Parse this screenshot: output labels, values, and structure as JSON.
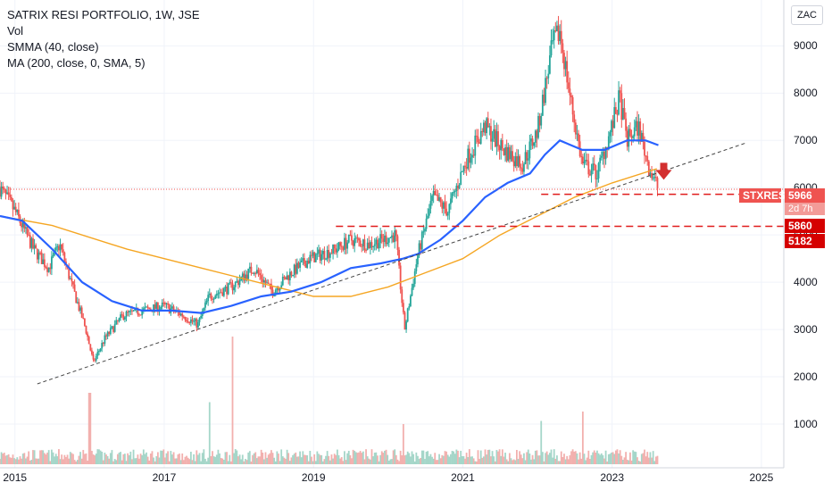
{
  "legend": {
    "title": "SATRIX RESI PORTFOLIO, 1W, JSE",
    "vol": "Vol",
    "smma": "SMMA (40, close)",
    "ma": "MA (200, close, 0, SMA, 5)"
  },
  "currency_button": "ZAC",
  "colors": {
    "up": "#26a69a",
    "down": "#ef5350",
    "smma": "#2962ff",
    "ma": "#f5a623",
    "level": "#e01b1b",
    "trend": "#444444"
  },
  "price_tags": {
    "symbol": "STXRES",
    "last_price": "5966",
    "countdown": "2d 7h",
    "level_1": "5860",
    "level_2": "5182"
  },
  "chart_data": {
    "type": "candlestick",
    "title": "SATRIX RESI PORTFOLIO, 1W, JSE",
    "xlim": [
      2014.8,
      2025.3
    ],
    "ylim": [
      1000,
      9800
    ],
    "y_ticks": [
      1000,
      2000,
      3000,
      4000,
      5000,
      6000,
      7000,
      8000,
      9000
    ],
    "x_ticks": [
      2015,
      2017,
      2019,
      2021,
      2023,
      2025
    ],
    "close_path": [
      {
        "x": 2014.8,
        "y": 5990
      },
      {
        "x": 2015.0,
        "y": 5500
      },
      {
        "x": 2015.25,
        "y": 4700
      },
      {
        "x": 2015.45,
        "y": 4300
      },
      {
        "x": 2015.6,
        "y": 4800
      },
      {
        "x": 2015.75,
        "y": 4000
      },
      {
        "x": 2015.95,
        "y": 3000
      },
      {
        "x": 2016.05,
        "y": 2300
      },
      {
        "x": 2016.2,
        "y": 2800
      },
      {
        "x": 2016.45,
        "y": 3300
      },
      {
        "x": 2016.7,
        "y": 3400
      },
      {
        "x": 2017.0,
        "y": 3500
      },
      {
        "x": 2017.25,
        "y": 3300
      },
      {
        "x": 2017.45,
        "y": 3100
      },
      {
        "x": 2017.6,
        "y": 3700
      },
      {
        "x": 2017.9,
        "y": 3900
      },
      {
        "x": 2018.2,
        "y": 4300
      },
      {
        "x": 2018.45,
        "y": 3800
      },
      {
        "x": 2018.7,
        "y": 4200
      },
      {
        "x": 2018.95,
        "y": 4500
      },
      {
        "x": 2019.3,
        "y": 4700
      },
      {
        "x": 2019.5,
        "y": 4900
      },
      {
        "x": 2019.75,
        "y": 4800
      },
      {
        "x": 2020.1,
        "y": 5000
      },
      {
        "x": 2020.22,
        "y": 3000
      },
      {
        "x": 2020.4,
        "y": 4600
      },
      {
        "x": 2020.6,
        "y": 5800
      },
      {
        "x": 2020.8,
        "y": 5500
      },
      {
        "x": 2021.05,
        "y": 6600
      },
      {
        "x": 2021.3,
        "y": 7300
      },
      {
        "x": 2021.55,
        "y": 6800
      },
      {
        "x": 2021.8,
        "y": 6500
      },
      {
        "x": 2022.0,
        "y": 7200
      },
      {
        "x": 2022.2,
        "y": 9000
      },
      {
        "x": 2022.3,
        "y": 9300
      },
      {
        "x": 2022.45,
        "y": 7800
      },
      {
        "x": 2022.6,
        "y": 6500
      },
      {
        "x": 2022.8,
        "y": 6300
      },
      {
        "x": 2023.0,
        "y": 7300
      },
      {
        "x": 2023.1,
        "y": 7900
      },
      {
        "x": 2023.2,
        "y": 7000
      },
      {
        "x": 2023.35,
        "y": 7300
      },
      {
        "x": 2023.5,
        "y": 6400
      },
      {
        "x": 2023.62,
        "y": 5970
      }
    ],
    "smma_40": [
      {
        "x": 2014.8,
        "y": 5400
      },
      {
        "x": 2015.1,
        "y": 5300
      },
      {
        "x": 2015.5,
        "y": 4700
      },
      {
        "x": 2015.9,
        "y": 4000
      },
      {
        "x": 2016.3,
        "y": 3600
      },
      {
        "x": 2016.7,
        "y": 3400
      },
      {
        "x": 2017.1,
        "y": 3400
      },
      {
        "x": 2017.5,
        "y": 3350
      },
      {
        "x": 2017.9,
        "y": 3500
      },
      {
        "x": 2018.3,
        "y": 3700
      },
      {
        "x": 2018.7,
        "y": 3800
      },
      {
        "x": 2019.1,
        "y": 4000
      },
      {
        "x": 2019.5,
        "y": 4300
      },
      {
        "x": 2019.9,
        "y": 4400
      },
      {
        "x": 2020.2,
        "y": 4500
      },
      {
        "x": 2020.4,
        "y": 4600
      },
      {
        "x": 2020.7,
        "y": 4900
      },
      {
        "x": 2021.0,
        "y": 5300
      },
      {
        "x": 2021.3,
        "y": 5800
      },
      {
        "x": 2021.6,
        "y": 6100
      },
      {
        "x": 2021.9,
        "y": 6300
      },
      {
        "x": 2022.1,
        "y": 6700
      },
      {
        "x": 2022.3,
        "y": 7000
      },
      {
        "x": 2022.6,
        "y": 6800
      },
      {
        "x": 2022.9,
        "y": 6800
      },
      {
        "x": 2023.2,
        "y": 7000
      },
      {
        "x": 2023.45,
        "y": 7000
      },
      {
        "x": 2023.62,
        "y": 6900
      }
    ],
    "ma_200": [
      {
        "x": 2014.8,
        "y": 5400
      },
      {
        "x": 2015.5,
        "y": 5200
      },
      {
        "x": 2016.5,
        "y": 4700
      },
      {
        "x": 2017.5,
        "y": 4300
      },
      {
        "x": 2018.5,
        "y": 3900
      },
      {
        "x": 2019.0,
        "y": 3700
      },
      {
        "x": 2019.5,
        "y": 3700
      },
      {
        "x": 2020.0,
        "y": 3900
      },
      {
        "x": 2020.5,
        "y": 4200
      },
      {
        "x": 2021.0,
        "y": 4500
      },
      {
        "x": 2021.5,
        "y": 5000
      },
      {
        "x": 2022.0,
        "y": 5400
      },
      {
        "x": 2022.5,
        "y": 5800
      },
      {
        "x": 2023.0,
        "y": 6100
      },
      {
        "x": 2023.6,
        "y": 6400
      }
    ],
    "trendline": [
      {
        "x": 2015.3,
        "y": 1850
      },
      {
        "x": 2024.8,
        "y": 6950
      }
    ],
    "levels": [
      {
        "value": 5860,
        "x_start": 2022.05
      },
      {
        "value": 5182,
        "x_start": 2019.3
      }
    ],
    "dotted_last_price": 5966,
    "volume_spikes": [
      {
        "x": 2016.0,
        "v": 1.0
      },
      {
        "x": 2017.6,
        "v": 0.85
      },
      {
        "x": 2017.92,
        "v": 1.9
      },
      {
        "x": 2022.05,
        "v": 0.55
      },
      {
        "x": 2022.6,
        "v": 0.7
      },
      {
        "x": 2020.2,
        "v": 0.5
      }
    ]
  }
}
